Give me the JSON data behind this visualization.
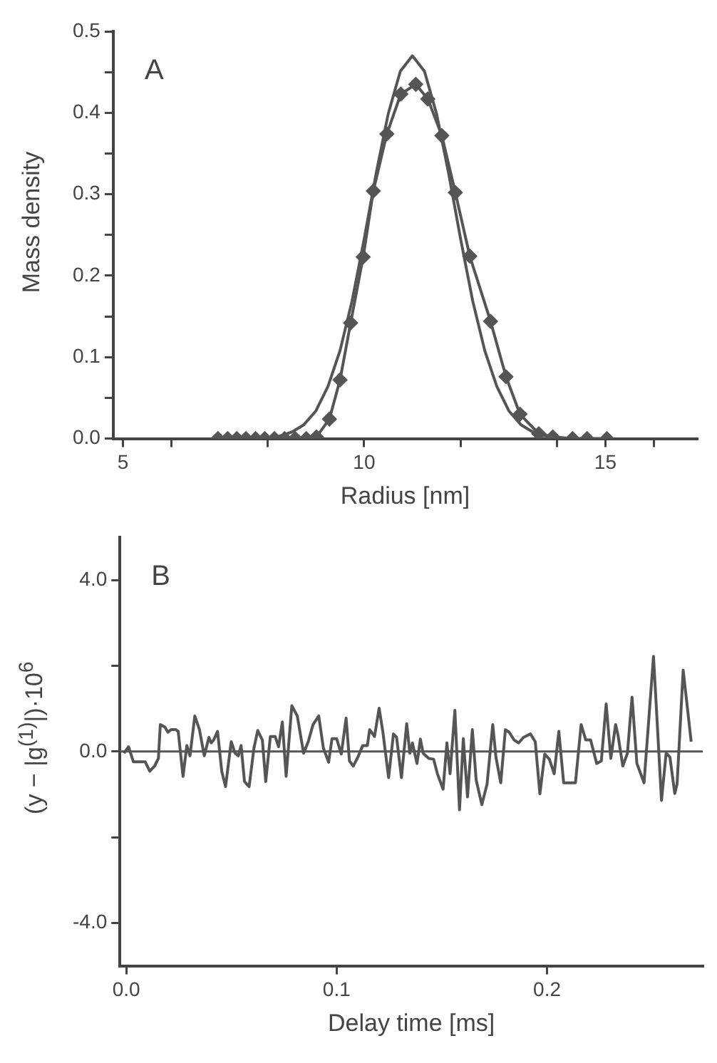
{
  "chart_data": [
    {
      "type": "line",
      "ylabel": "Mass density",
      "xlabel": "Radius [nm]",
      "annotations": [
        "A"
      ],
      "xlim": [
        4.8,
        16.9
      ],
      "xticks": [
        5,
        {
          "value": 6,
          "label": null
        },
        {
          "value": 8,
          "label": null
        },
        10,
        {
          "value": 12,
          "label": null
        },
        {
          "value": 14,
          "label": null
        },
        15,
        {
          "value": 16,
          "label": null
        }
      ],
      "ylim": [
        0,
        0.5
      ],
      "yticks": [
        {
          "value": 0,
          "label": "0.0"
        },
        {
          "value": 0.05,
          "label": null
        },
        0.1,
        {
          "value": 0.15,
          "label": null
        },
        0.2,
        {
          "value": 0.25,
          "label": null
        },
        0.3,
        {
          "value": 0.35,
          "label": null
        },
        0.4,
        {
          "value": 0.45,
          "label": null
        },
        0.5
      ],
      "grid": false,
      "legend": false,
      "line_style": "solid",
      "series": [
        {
          "color": "#555555",
          "marker": "none",
          "x": [
            7.75,
            8.0,
            8.25,
            8.5,
            8.75,
            9.0,
            9.25,
            9.5,
            9.75,
            10.0,
            10.25,
            10.5,
            10.75,
            11.0,
            11.25,
            11.5,
            11.75,
            12.0,
            12.25,
            12.5,
            12.75,
            13.0,
            13.25,
            13.5,
            13.75
          ],
          "values": [
            0,
            0.001,
            0.003,
            0.008,
            0.017,
            0.034,
            0.064,
            0.108,
            0.169,
            0.245,
            0.326,
            0.399,
            0.451,
            0.47,
            0.451,
            0.399,
            0.326,
            0.245,
            0.169,
            0.108,
            0.064,
            0.034,
            0.017,
            0.008,
            0.003
          ]
        },
        {
          "color": "#555555",
          "marker": "diamond",
          "x": [
            6.97,
            7.17,
            7.36,
            7.55,
            7.75,
            7.94,
            8.14,
            8.35,
            8.57,
            8.8,
            9.01,
            9.28,
            9.5,
            9.72,
            9.98,
            10.19,
            10.47,
            10.76,
            11.07,
            11.32,
            11.61,
            11.89,
            12.19,
            12.62,
            12.94,
            13.23,
            13.62,
            13.91,
            14.32,
            14.62,
            15.03
          ],
          "values": [
            0,
            0,
            0,
            0,
            0,
            0,
            0,
            0,
            0,
            0,
            0.002,
            0.024,
            0.072,
            0.142,
            0.223,
            0.304,
            0.374,
            0.423,
            0.435,
            0.417,
            0.372,
            0.302,
            0.224,
            0.144,
            0.076,
            0.03,
            0.006,
            0.002,
            0,
            0,
            0
          ]
        }
      ]
    },
    {
      "type": "line",
      "ylabel": "(y − |g$^{(1)}$|)·10$^{6}$",
      "xlabel": "Delay time [ms]",
      "annotations": [
        "B"
      ],
      "xlim": [
        -0.003,
        0.274
      ],
      "xticks": [
        {
          "value": 0,
          "label": "0.0"
        },
        0.1,
        0.2
      ],
      "ylim": [
        -5,
        5
      ],
      "yticks": [
        {
          "value": -4,
          "label": "-4.0"
        },
        {
          "value": -2,
          "label": null
        },
        {
          "value": 0,
          "label": "0.0"
        },
        {
          "value": 2,
          "label": null
        },
        {
          "value": 4,
          "label": "4.0"
        }
      ],
      "grid": false,
      "legend": false,
      "marker": "none",
      "line_style": "solid",
      "ref_lines": [
        {
          "axis": "y",
          "value": 0,
          "color": "#555555"
        }
      ],
      "series": [
        {
          "color": "#555555",
          "x": [
            -0.0011,
            0.0011,
            0.0034,
            0.0067,
            0.009,
            0.0112,
            0.0135,
            0.0153,
            0.0162,
            0.0184,
            0.0198,
            0.0213,
            0.0236,
            0.0247,
            0.027,
            0.0288,
            0.0303,
            0.0326,
            0.0348,
            0.0371,
            0.0393,
            0.0404,
            0.0416,
            0.0434,
            0.0454,
            0.0472,
            0.0499,
            0.0517,
            0.0533,
            0.0546,
            0.0562,
            0.0584,
            0.0607,
            0.0625,
            0.0647,
            0.0663,
            0.0685,
            0.0708,
            0.0724,
            0.0742,
            0.076,
            0.0787,
            0.0813,
            0.0843,
            0.0865,
            0.0888,
            0.0915,
            0.0937,
            0.0962,
            0.0978,
            0.1,
            0.1022,
            0.1045,
            0.1061,
            0.1079,
            0.1101,
            0.1124,
            0.1146,
            0.1157,
            0.118,
            0.1202,
            0.122,
            0.1247,
            0.127,
            0.1285,
            0.1308,
            0.1333,
            0.1348,
            0.136,
            0.1382,
            0.1398,
            0.1411,
            0.1438,
            0.1461,
            0.1479,
            0.1506,
            0.1524,
            0.1539,
            0.1562,
            0.1584,
            0.1602,
            0.1622,
            0.1645,
            0.1663,
            0.169,
            0.1715,
            0.1742,
            0.1757,
            0.178,
            0.1802,
            0.182,
            0.1843,
            0.1865,
            0.1888,
            0.1921,
            0.1944,
            0.1966,
            0.1989,
            0.2011,
            0.2034,
            0.2056,
            0.2079,
            0.2112,
            0.2135,
            0.2162,
            0.2184,
            0.2207,
            0.2236,
            0.2258,
            0.2281,
            0.2303,
            0.2326,
            0.2337,
            0.236,
            0.2382,
            0.2404,
            0.2427,
            0.2461,
            0.2506,
            0.2544,
            0.2566,
            0.2584,
            0.2607,
            0.2618,
            0.2647,
            0.2685
          ],
          "values": [
            -0.04,
            0.11,
            -0.24,
            -0.24,
            -0.24,
            -0.46,
            -0.34,
            -0.16,
            0.63,
            0.57,
            0.45,
            0.51,
            0.51,
            0.47,
            -0.58,
            0.14,
            -0.1,
            0.83,
            0.51,
            -0.1,
            0.33,
            0.2,
            0.27,
            0.47,
            -0.46,
            -0.82,
            0.23,
            -0.04,
            -0.1,
            0.14,
            -0.7,
            -0.82,
            0.08,
            0.49,
            0.27,
            -0.7,
            0.35,
            0.35,
            0.11,
            0.69,
            -0.58,
            1.07,
            0.83,
            -0.04,
            0.23,
            0.63,
            0.83,
            0.08,
            -0.25,
            0.3,
            0.3,
            -0.06,
            0.78,
            -0.22,
            -0.34,
            -0.13,
            0.14,
            0.14,
            0.51,
            0.35,
            1.01,
            0.45,
            -0.61,
            0.41,
            0.33,
            -0.61,
            0.65,
            -0.04,
            0.2,
            -0.28,
            0.29,
            -0.04,
            -0.16,
            -0.18,
            -0.52,
            -0.88,
            0.2,
            -0.52,
            0.96,
            -1.36,
            0.3,
            -1.06,
            0.51,
            -0.66,
            -1.24,
            -0.76,
            0.63,
            -0.13,
            -0.73,
            0.51,
            0.45,
            0.27,
            0.2,
            0.33,
            0.41,
            0.23,
            -0.99,
            -0.06,
            -0.18,
            -0.52,
            0.47,
            -0.73,
            -0.73,
            -0.73,
            0.63,
            0.27,
            0.27,
            -0.28,
            -0.22,
            1.11,
            -0.16,
            0.63,
            0.39,
            -0.34,
            -0.04,
            1.27,
            -0.28,
            -0.73,
            2.22,
            -1.14,
            -0.04,
            -0.13,
            -0.98,
            -0.76,
            1.9,
            0.23
          ]
        }
      ]
    }
  ]
}
